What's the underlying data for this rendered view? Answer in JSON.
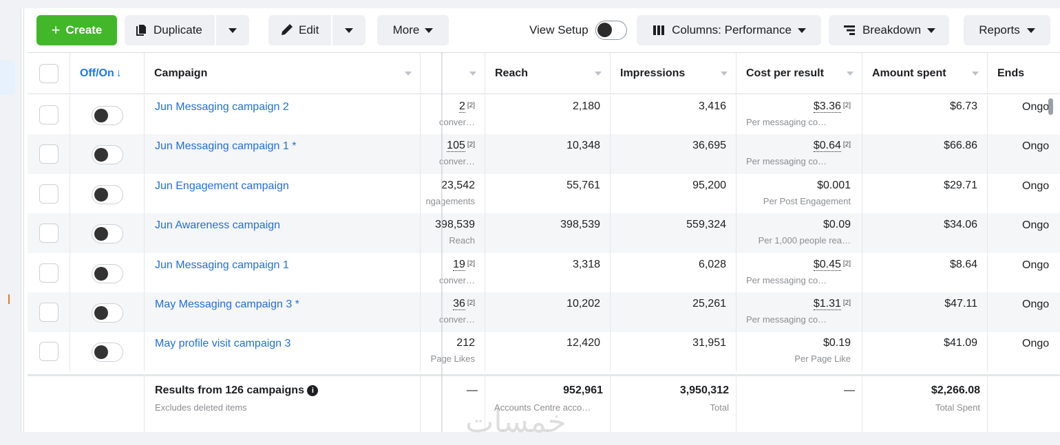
{
  "toolbar": {
    "create_label": "Create",
    "duplicate_label": "Duplicate",
    "edit_label": "Edit",
    "more_label": "More",
    "view_setup_label": "View Setup",
    "columns_label": "Columns: Performance",
    "breakdown_label": "Breakdown",
    "reports_label": "Reports"
  },
  "colors": {
    "create": "#42b72a",
    "link": "#216fdb",
    "accent": "#1877f2"
  },
  "headers": {
    "offon": "Off/On",
    "campaign": "Campaign",
    "reach": "Reach",
    "impressions": "Impressions",
    "cost_per_result": "Cost per result",
    "amount_spent": "Amount spent",
    "ends": "Ends"
  },
  "rows": [
    {
      "name": "Jun Messaging campaign 2",
      "results": "2",
      "results_sup": "[2]",
      "results_sub": "conver…",
      "reach": "2,180",
      "impressions": "3,416",
      "cpr": "$3.36",
      "cpr_sup": "[2]",
      "cpr_sub": "Per messaging co…",
      "spent": "$6.73",
      "ends": "Ongo"
    },
    {
      "name": "Jun Messaging campaign 1 *",
      "results": "105",
      "results_sup": "[2]",
      "results_sub": "conver…",
      "reach": "10,348",
      "impressions": "36,695",
      "cpr": "$0.64",
      "cpr_sup": "[2]",
      "cpr_sub": "Per messaging co…",
      "spent": "$66.86",
      "ends": "Ongo"
    },
    {
      "name": "Jun Engagement campaign",
      "results": "23,542",
      "results_sup": "",
      "results_sub": "ngagements",
      "reach": "55,761",
      "impressions": "95,200",
      "cpr": "$0.001",
      "cpr_sup": "",
      "cpr_sub": "Per Post Engagement",
      "spent": "$29.71",
      "ends": "Ongo"
    },
    {
      "name": "Jun Awareness campaign",
      "results": "398,539",
      "results_sup": "",
      "results_sub": "Reach",
      "reach": "398,539",
      "impressions": "559,324",
      "cpr": "$0.09",
      "cpr_sup": "",
      "cpr_sub": "Per 1,000 people rea…",
      "spent": "$34.06",
      "ends": "Ongo"
    },
    {
      "name": "Jun Messaging campaign 1",
      "results": "19",
      "results_sup": "[2]",
      "results_sub": "conver…",
      "reach": "3,318",
      "impressions": "6,028",
      "cpr": "$0.45",
      "cpr_sup": "[2]",
      "cpr_sub": "Per messaging co…",
      "spent": "$8.64",
      "ends": "Ongo"
    },
    {
      "name": "May Messaging campaign 3 *",
      "results": "36",
      "results_sup": "[2]",
      "results_sub": "conver…",
      "reach": "10,202",
      "impressions": "25,261",
      "cpr": "$1.31",
      "cpr_sup": "[2]",
      "cpr_sub": "Per messaging co…",
      "spent": "$47.11",
      "ends": "Ongo"
    },
    {
      "name": "May profile visit campaign 3",
      "results": "212",
      "results_sup": "",
      "results_sub": "Page Likes",
      "reach": "12,420",
      "impressions": "31,951",
      "cpr": "$0.19",
      "cpr_sup": "",
      "cpr_sub": "Per Page Like",
      "spent": "$41.09",
      "ends": "Ongo"
    }
  ],
  "footer": {
    "title": "Results from 126 campaigns",
    "subtitle": "Excludes deleted items",
    "results": "—",
    "reach": "952,961",
    "reach_sub": "Accounts Centre acco…",
    "impressions": "3,950,312",
    "impressions_sub": "Total",
    "cpr": "—",
    "spent": "$2,266.08",
    "spent_sub": "Total Spent"
  },
  "watermark": "خمسات"
}
